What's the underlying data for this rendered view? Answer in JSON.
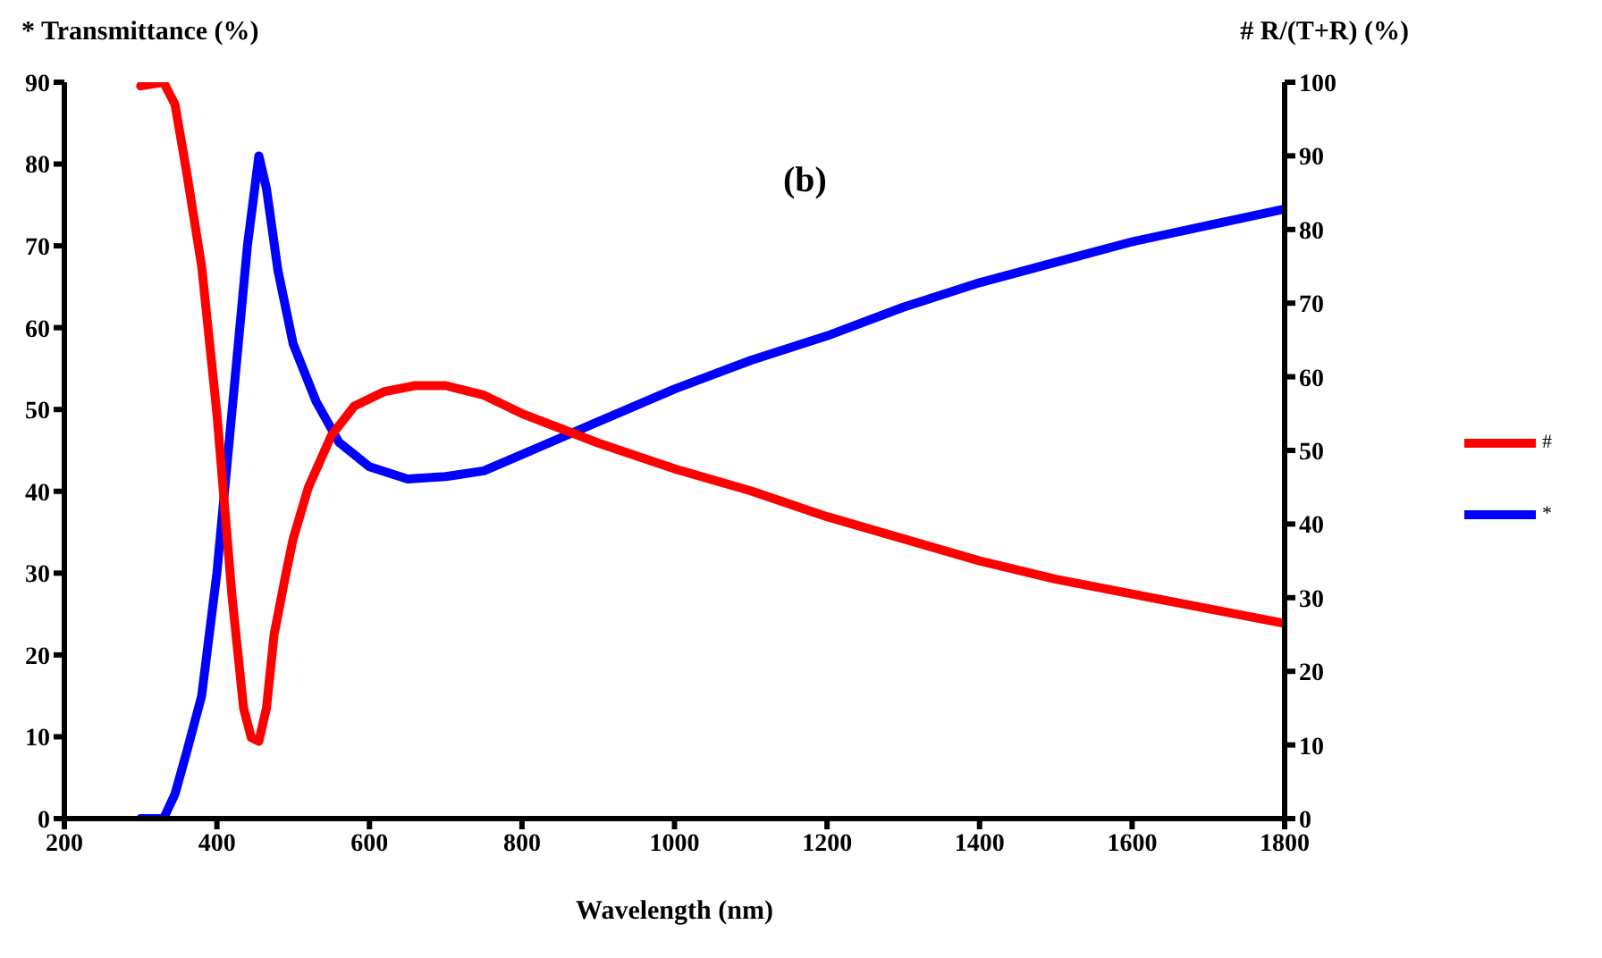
{
  "chart_data": {
    "type": "line",
    "xlabel": "Wavelength (nm)",
    "ylabel": "* Transmittance (%)",
    "y2label": "# R/(T+R) (%)",
    "annotations": [
      "(b)"
    ],
    "xlim": [
      200,
      1800
    ],
    "xticks": [
      200,
      400,
      600,
      800,
      1000,
      1200,
      1400,
      1600,
      1800
    ],
    "ylim": [
      0,
      90
    ],
    "yticks": [
      0,
      10,
      20,
      30,
      40,
      50,
      60,
      70,
      80,
      90
    ],
    "y2lim": [
      0,
      100
    ],
    "y2ticks": [
      0,
      10,
      20,
      30,
      40,
      50,
      60,
      70,
      80,
      90,
      100
    ],
    "grid": false,
    "legend": "right",
    "marker": "none",
    "line_style": "solid",
    "series": [
      {
        "name": "*",
        "color": "#0000ff",
        "x": [
          300,
          330,
          345,
          360,
          380,
          400,
          420,
          440,
          455,
          465,
          480,
          500,
          530,
          560,
          600,
          650,
          700,
          750,
          800,
          850,
          900,
          1000,
          1100,
          1200,
          1300,
          1400,
          1500,
          1600,
          1700,
          1800
        ],
        "values": [
          0,
          0,
          3,
          8,
          15,
          30,
          50,
          70,
          81,
          77,
          67,
          58,
          51,
          46,
          43,
          41.5,
          41.8,
          42.5,
          44.5,
          46.5,
          48.5,
          52.5,
          56,
          59,
          62.5,
          65.5,
          68,
          70.5,
          72.5,
          74.5
        ]
      },
      {
        "name": "#",
        "color": "#ff0000",
        "axis": "y2",
        "x": [
          300,
          330,
          345,
          360,
          380,
          400,
          420,
          435,
          445,
          455,
          465,
          475,
          490,
          500,
          520,
          550,
          580,
          620,
          660,
          700,
          750,
          800,
          850,
          900,
          1000,
          1100,
          1200,
          1300,
          1400,
          1500,
          1600,
          1700,
          1800
        ],
        "values": [
          99.5,
          100,
          97,
          88,
          75,
          55,
          30,
          15,
          11,
          10.5,
          15,
          25,
          33,
          38,
          45,
          52,
          56,
          58,
          58.8,
          58.8,
          57.5,
          55,
          53,
          51,
          47.5,
          44.5,
          41,
          38,
          35,
          32.5,
          30.5,
          28.5,
          26.5
        ]
      }
    ]
  }
}
